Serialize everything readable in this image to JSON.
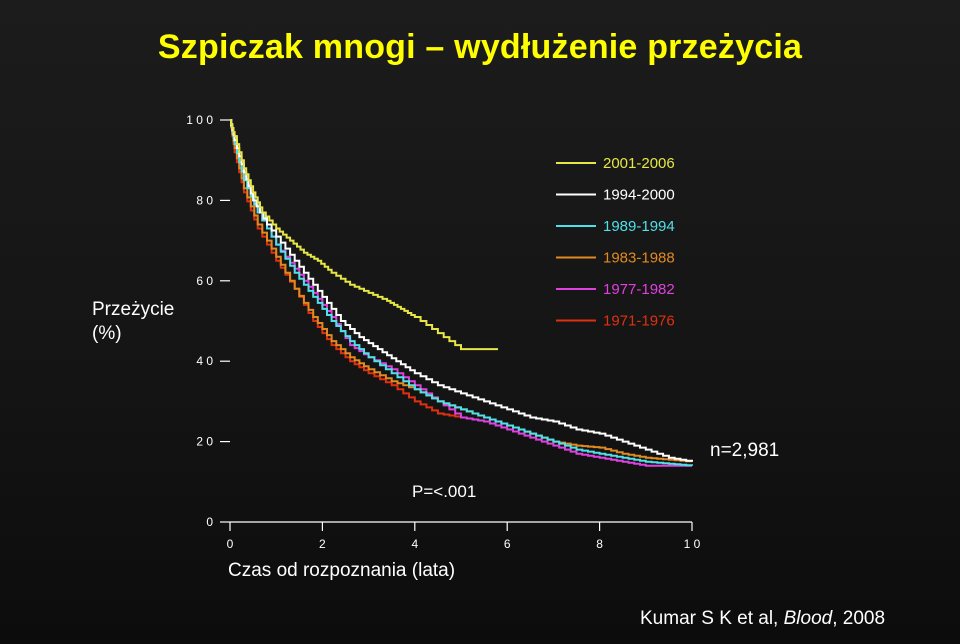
{
  "title": "Szpiczak mnogi – wydłużenie przeżycia",
  "n_label": "n=2,981",
  "p_value": "P=<.001",
  "citation": {
    "prefix": "Kumar S K et al, ",
    "journal": "Blood",
    "suffix": ", 2008"
  },
  "chart_data": {
    "type": "line",
    "title": "Szpiczak mnogi – wydłużenie przeżycia",
    "xlabel": "Czas od rozpoznania (lata)",
    "ylabel_lines": [
      "Przeżycie",
      "(%)"
    ],
    "xlim": [
      0,
      10
    ],
    "ylim": [
      0,
      100
    ],
    "x_ticks": [
      "0",
      "2",
      "4",
      "6",
      "8",
      "10"
    ],
    "x_tick_labels": [
      "0",
      "2",
      "4",
      "6",
      "8",
      "1 0"
    ],
    "y_tick_labels": [
      "0",
      "2 0",
      "4 0",
      "6 0",
      "8 0",
      "1 0 0"
    ],
    "grid": false,
    "legend_position": "top-right",
    "series": [
      {
        "name": "2001-2006",
        "color": "#e6e645",
        "x": [
          0,
          0.1,
          0.3,
          0.5,
          0.7,
          1.0,
          1.3,
          1.6,
          1.9,
          2.2,
          2.6,
          3.0,
          3.4,
          3.7,
          4.0,
          4.5,
          5.0,
          5.8
        ],
        "y": [
          100,
          96,
          88,
          82,
          77,
          73,
          70,
          67,
          65,
          62,
          59,
          57,
          55,
          53,
          51,
          47,
          43,
          43
        ]
      },
      {
        "name": "1994-2000",
        "color": "#ffffff",
        "x": [
          0,
          0.1,
          0.3,
          0.5,
          0.8,
          1.2,
          1.6,
          2.0,
          2.4,
          2.8,
          3.2,
          3.6,
          4.0,
          4.5,
          5.0,
          5.5,
          6.0,
          6.5,
          7.0,
          7.5,
          8.0,
          8.5,
          9.0,
          9.5,
          10.0
        ],
        "y": [
          100,
          95,
          87,
          80,
          74,
          68,
          62,
          56,
          50,
          46,
          43,
          40,
          37,
          34,
          32,
          30,
          28,
          26,
          25,
          23,
          22,
          20,
          18,
          16,
          15
        ]
      },
      {
        "name": "1989-1994",
        "color": "#50e0e8",
        "x": [
          0,
          0.1,
          0.3,
          0.6,
          1.0,
          1.4,
          1.8,
          2.2,
          2.6,
          3.0,
          3.5,
          4.0,
          4.5,
          5.0,
          5.5,
          6.0,
          6.5,
          7.0,
          7.5,
          8.0,
          8.5,
          9.0,
          9.5,
          10.0
        ],
        "y": [
          100,
          94,
          85,
          77,
          69,
          62,
          56,
          50,
          45,
          41,
          37,
          33,
          30,
          28,
          26,
          24,
          22,
          20,
          18,
          17,
          16,
          15,
          14.5,
          14
        ]
      },
      {
        "name": "1983-1988",
        "color": "#e08a20",
        "x": [
          0,
          0.1,
          0.3,
          0.6,
          1.0,
          1.4,
          1.8,
          2.2,
          2.6,
          3.0,
          3.5,
          4.0,
          4.5,
          5.0,
          5.5,
          6.0,
          6.5,
          7.0,
          7.5,
          8.0,
          8.5,
          9.0,
          9.5,
          10.0
        ],
        "y": [
          100,
          93,
          83,
          74,
          66,
          58,
          51,
          45,
          41,
          38,
          35,
          33,
          30,
          28,
          26,
          24,
          22,
          20,
          19,
          18.5,
          17,
          16,
          15.5,
          15
        ]
      },
      {
        "name": "1977-1982",
        "color": "#e040e0",
        "x": [
          0,
          0.1,
          0.3,
          0.6,
          1.0,
          1.4,
          1.8,
          2.2,
          2.6,
          3.0,
          3.5,
          4.0,
          4.5,
          5.0,
          5.5,
          6.0,
          6.5,
          7.0,
          7.5,
          8.0,
          8.5,
          9.0,
          9.5,
          10.0
        ],
        "y": [
          100,
          94,
          86,
          77,
          69,
          63,
          57,
          51,
          44,
          41,
          38,
          34,
          30,
          26,
          25,
          23,
          21,
          19,
          17,
          16,
          15,
          14,
          14,
          14
        ]
      },
      {
        "name": "1971-1976",
        "color": "#e03010",
        "x": [
          0,
          0.1,
          0.3,
          0.6,
          1.0,
          1.4,
          1.8,
          2.2,
          2.6,
          3.0,
          3.5,
          4.0,
          4.5,
          5.0
        ],
        "y": [
          100,
          92,
          82,
          73,
          65,
          58,
          50,
          44,
          40,
          37,
          34,
          30,
          27,
          26
        ]
      }
    ]
  }
}
